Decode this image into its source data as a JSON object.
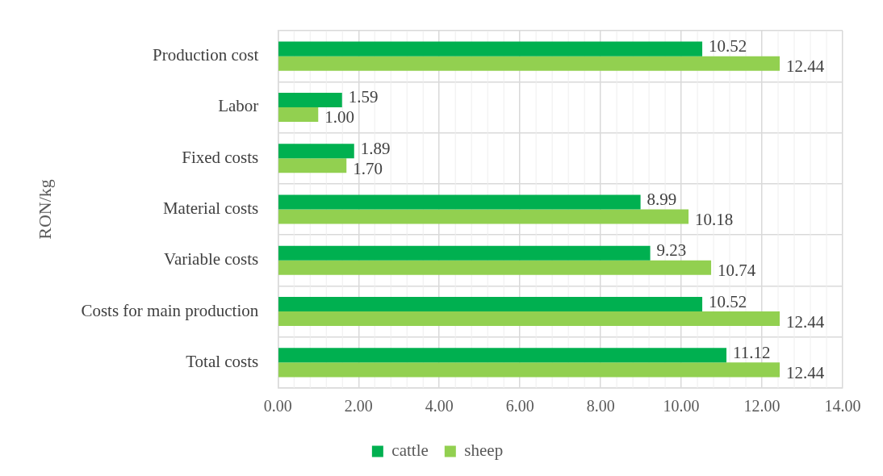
{
  "chart_data": {
    "type": "bar",
    "orientation": "horizontal",
    "ylabel": "RON/kg",
    "categories": [
      "Production cost",
      "Labor",
      "Fixed costs",
      "Material costs",
      "Variable costs",
      "Costs for main production",
      "Total costs"
    ],
    "series": [
      {
        "name": "cattle",
        "color": "#00b050",
        "values": [
          10.52,
          1.59,
          1.89,
          8.99,
          9.23,
          10.52,
          11.12
        ],
        "value_labels": [
          "10.52",
          "1.59",
          "1.89",
          "8.99",
          "9.23",
          "10.52",
          "11.12"
        ]
      },
      {
        "name": "sheep",
        "color": "#92d050",
        "values": [
          12.44,
          1.0,
          1.7,
          10.18,
          10.74,
          12.44,
          12.44
        ],
        "value_labels": [
          "12.44",
          "1.00",
          "1.70",
          "10.18",
          "10.74",
          "12.44",
          "12.44"
        ]
      }
    ],
    "xlim": [
      0,
      14
    ],
    "xticks": [
      {
        "value": 0,
        "label": "0.00"
      },
      {
        "value": 2,
        "label": "2.00"
      },
      {
        "value": 4,
        "label": "4.00"
      },
      {
        "value": 6,
        "label": "6.00"
      },
      {
        "value": 8,
        "label": "8.00"
      },
      {
        "value": 10,
        "label": "10.00"
      },
      {
        "value": 12,
        "label": "12.00"
      },
      {
        "value": 14,
        "label": "14.00"
      }
    ],
    "grid": true,
    "legend": "bottom"
  }
}
